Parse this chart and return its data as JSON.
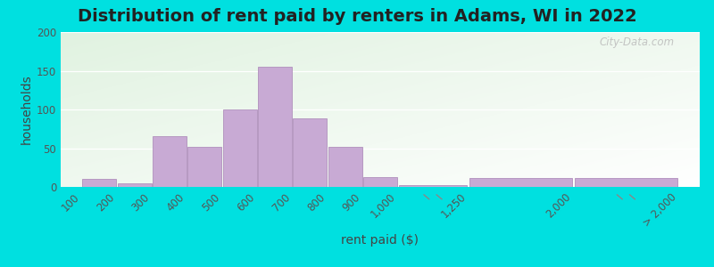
{
  "title": "Distribution of rent paid by renters in Adams, WI in 2022",
  "xlabel": "rent paid ($)",
  "ylabel": "households",
  "background_outer": "#00e0e0",
  "bar_color": "#c8aad4",
  "bar_edge_color": "#b090bc",
  "ylim": [
    0,
    200
  ],
  "yticks": [
    0,
    50,
    100,
    150,
    200
  ],
  "values": [
    10,
    5,
    65,
    52,
    100,
    155,
    88,
    52,
    13,
    2,
    12,
    12
  ],
  "xtick_labels": [
    "100",
    "200",
    "300",
    "400",
    "500",
    "600",
    "700",
    "800",
    "900",
    "1,000",
    "1,250",
    "2,000",
    "> 2,000"
  ],
  "tick_positions": [
    0,
    1,
    2,
    3,
    4,
    5,
    6,
    7,
    8,
    9,
    11,
    14,
    17
  ],
  "title_fontsize": 14,
  "axis_label_fontsize": 10,
  "tick_fontsize": 8.5,
  "watermark": "City-Data.com"
}
